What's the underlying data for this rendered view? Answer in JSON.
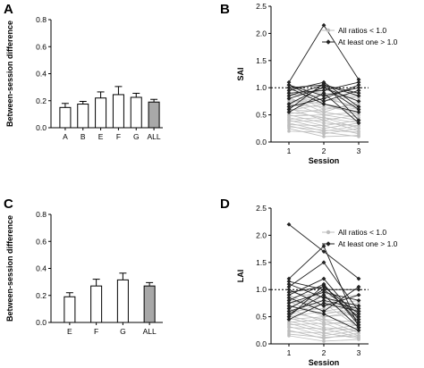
{
  "chart_data": [
    {
      "panel": "A",
      "type": "bar",
      "ylabel": "Between-session difference",
      "xlabel": "",
      "ylim": [
        0,
        0.8
      ],
      "yticks": [
        "0.0",
        "0.2",
        "0.4",
        "0.6",
        "0.8"
      ],
      "categories": [
        "A",
        "B",
        "E",
        "F",
        "G",
        "ALL"
      ],
      "values": [
        0.15,
        0.175,
        0.22,
        0.245,
        0.225,
        0.19
      ],
      "errors": [
        0.03,
        0.02,
        0.045,
        0.06,
        0.03,
        0.02
      ],
      "bar_fill": [
        "#ffffff",
        "#ffffff",
        "#ffffff",
        "#ffffff",
        "#ffffff",
        "#a8a8a8"
      ]
    },
    {
      "panel": "B",
      "type": "line",
      "xlabel": "Session",
      "ylabel": "SAI",
      "xticks": [
        "1",
        "2",
        "3"
      ],
      "ylim": [
        0,
        2.5
      ],
      "yticks": [
        "0.0",
        "0.5",
        "1.0",
        "1.5",
        "2.0",
        "2.5"
      ],
      "reference_line": 1.0,
      "legend": [
        "All ratios < 1.0",
        "At least one > 1.0"
      ],
      "legend_position": "top-right",
      "series_colors": {
        "below": "#bdbdbd",
        "above": "#222222"
      },
      "series": [
        {
          "group": "below",
          "values": [
            0.95,
            0.9,
            0.85
          ]
        },
        {
          "group": "below",
          "values": [
            0.92,
            0.6,
            0.7
          ]
        },
        {
          "group": "below",
          "values": [
            0.88,
            0.85,
            0.6
          ]
        },
        {
          "group": "below",
          "values": [
            0.85,
            0.95,
            0.9
          ]
        },
        {
          "group": "below",
          "values": [
            0.82,
            0.55,
            0.75
          ]
        },
        {
          "group": "below",
          "values": [
            0.78,
            0.7,
            0.5
          ]
        },
        {
          "group": "below",
          "values": [
            0.75,
            0.8,
            0.65
          ]
        },
        {
          "group": "below",
          "values": [
            0.72,
            0.5,
            0.4
          ]
        },
        {
          "group": "below",
          "values": [
            0.7,
            0.9,
            0.8
          ]
        },
        {
          "group": "below",
          "values": [
            0.68,
            0.65,
            0.55
          ]
        },
        {
          "group": "below",
          "values": [
            0.65,
            0.75,
            0.85
          ]
        },
        {
          "group": "below",
          "values": [
            0.62,
            0.4,
            0.5
          ]
        },
        {
          "group": "below",
          "values": [
            0.6,
            0.55,
            0.45
          ]
        },
        {
          "group": "below",
          "values": [
            0.58,
            0.7,
            0.6
          ]
        },
        {
          "group": "below",
          "values": [
            0.55,
            0.45,
            0.35
          ]
        },
        {
          "group": "below",
          "values": [
            0.52,
            0.6,
            0.7
          ]
        },
        {
          "group": "below",
          "values": [
            0.5,
            0.35,
            0.3
          ]
        },
        {
          "group": "below",
          "values": [
            0.48,
            0.5,
            0.55
          ]
        },
        {
          "group": "below",
          "values": [
            0.45,
            0.3,
            0.4
          ]
        },
        {
          "group": "below",
          "values": [
            0.42,
            0.45,
            0.25
          ]
        },
        {
          "group": "below",
          "values": [
            0.4,
            0.25,
            0.35
          ]
        },
        {
          "group": "below",
          "values": [
            0.38,
            0.4,
            0.2
          ]
        },
        {
          "group": "below",
          "values": [
            0.35,
            0.2,
            0.3
          ]
        },
        {
          "group": "below",
          "values": [
            0.32,
            0.3,
            0.15
          ]
        },
        {
          "group": "below",
          "values": [
            0.3,
            0.15,
            0.25
          ]
        },
        {
          "group": "below",
          "values": [
            0.28,
            0.22,
            0.18
          ]
        },
        {
          "group": "below",
          "values": [
            0.25,
            0.1,
            0.12
          ]
        },
        {
          "group": "below",
          "values": [
            0.2,
            0.18,
            0.1
          ]
        },
        {
          "group": "above",
          "values": [
            1.1,
            2.15,
            1.15
          ]
        },
        {
          "group": "above",
          "values": [
            1.05,
            0.85,
            1.0
          ]
        },
        {
          "group": "above",
          "values": [
            1.0,
            1.05,
            0.9
          ]
        },
        {
          "group": "above",
          "values": [
            0.95,
            1.1,
            0.65
          ]
        },
        {
          "group": "above",
          "values": [
            0.9,
            0.95,
            1.1
          ]
        },
        {
          "group": "above",
          "values": [
            0.8,
            1.0,
            0.75
          ]
        },
        {
          "group": "above",
          "values": [
            1.05,
            0.75,
            0.95
          ]
        },
        {
          "group": "above",
          "values": [
            0.7,
            1.02,
            0.6
          ]
        },
        {
          "group": "above",
          "values": [
            0.65,
            0.8,
            1.05
          ]
        },
        {
          "group": "above",
          "values": [
            0.6,
            1.08,
            0.4
          ]
        },
        {
          "group": "above",
          "values": [
            1.0,
            0.7,
            0.55
          ]
        },
        {
          "group": "above",
          "values": [
            0.55,
            0.9,
            0.35
          ]
        },
        {
          "group": "above",
          "values": [
            0.85,
            1.05,
            0.85
          ]
        }
      ]
    },
    {
      "panel": "C",
      "type": "bar",
      "ylabel": "Between-session difference",
      "xlabel": "",
      "ylim": [
        0,
        0.8
      ],
      "yticks": [
        "0.0",
        "0.2",
        "0.4",
        "0.6",
        "0.8"
      ],
      "categories": [
        "E",
        "F",
        "G",
        "ALL"
      ],
      "values": [
        0.19,
        0.27,
        0.315,
        0.27
      ],
      "errors": [
        0.03,
        0.05,
        0.05,
        0.025
      ],
      "bar_fill": [
        "#ffffff",
        "#ffffff",
        "#ffffff",
        "#a8a8a8"
      ]
    },
    {
      "panel": "D",
      "type": "line",
      "xlabel": "Session",
      "ylabel": "LAI",
      "xticks": [
        "1",
        "2",
        "3"
      ],
      "ylim": [
        0,
        2.5
      ],
      "yticks": [
        "0.0",
        "0.5",
        "1.0",
        "1.5",
        "2.0",
        "2.5"
      ],
      "reference_line": 1.0,
      "legend": [
        "All ratios < 1.0",
        "At least one > 1.0"
      ],
      "legend_position": "top-right",
      "series_colors": {
        "below": "#bdbdbd",
        "above": "#222222"
      },
      "series": [
        {
          "group": "below",
          "values": [
            0.95,
            0.85,
            0.9
          ]
        },
        {
          "group": "below",
          "values": [
            0.9,
            0.6,
            0.7
          ]
        },
        {
          "group": "below",
          "values": [
            0.85,
            0.95,
            0.6
          ]
        },
        {
          "group": "below",
          "values": [
            0.8,
            0.7,
            0.8
          ]
        },
        {
          "group": "below",
          "values": [
            0.78,
            0.5,
            0.55
          ]
        },
        {
          "group": "below",
          "values": [
            0.75,
            0.8,
            0.45
          ]
        },
        {
          "group": "below",
          "values": [
            0.7,
            0.55,
            0.65
          ]
        },
        {
          "group": "below",
          "values": [
            0.68,
            0.9,
            0.5
          ]
        },
        {
          "group": "below",
          "values": [
            0.65,
            0.4,
            0.35
          ]
        },
        {
          "group": "below",
          "values": [
            0.6,
            0.65,
            0.75
          ]
        },
        {
          "group": "below",
          "values": [
            0.58,
            0.45,
            0.4
          ]
        },
        {
          "group": "below",
          "values": [
            0.55,
            0.75,
            0.3
          ]
        },
        {
          "group": "below",
          "values": [
            0.52,
            0.35,
            0.45
          ]
        },
        {
          "group": "below",
          "values": [
            0.5,
            0.6,
            0.55
          ]
        },
        {
          "group": "below",
          "values": [
            0.48,
            0.3,
            0.25
          ]
        },
        {
          "group": "below",
          "values": [
            0.45,
            0.5,
            0.6
          ]
        },
        {
          "group": "below",
          "values": [
            0.42,
            0.25,
            0.35
          ]
        },
        {
          "group": "below",
          "values": [
            0.4,
            0.45,
            0.2
          ]
        },
        {
          "group": "below",
          "values": [
            0.38,
            0.2,
            0.3
          ]
        },
        {
          "group": "below",
          "values": [
            0.35,
            0.38,
            0.15
          ]
        },
        {
          "group": "below",
          "values": [
            0.32,
            0.15,
            0.25
          ]
        },
        {
          "group": "below",
          "values": [
            0.3,
            0.28,
            0.12
          ]
        },
        {
          "group": "below",
          "values": [
            0.25,
            0.1,
            0.2
          ]
        },
        {
          "group": "below",
          "values": [
            0.22,
            0.2,
            0.1
          ]
        },
        {
          "group": "below",
          "values": [
            0.18,
            0.12,
            0.15
          ]
        },
        {
          "group": "below",
          "values": [
            0.15,
            0.05,
            0.08
          ]
        },
        {
          "group": "above",
          "values": [
            2.2,
            1.7,
            1.2
          ]
        },
        {
          "group": "above",
          "values": [
            1.2,
            1.8,
            0.3
          ]
        },
        {
          "group": "above",
          "values": [
            1.15,
            1.0,
            1.0
          ]
        },
        {
          "group": "above",
          "values": [
            1.1,
            0.85,
            0.7
          ]
        },
        {
          "group": "above",
          "values": [
            1.05,
            1.5,
            0.6
          ]
        },
        {
          "group": "above",
          "values": [
            1.0,
            0.7,
            0.9
          ]
        },
        {
          "group": "above",
          "values": [
            0.95,
            1.05,
            0.55
          ]
        },
        {
          "group": "above",
          "values": [
            0.9,
            1.2,
            0.45
          ]
        },
        {
          "group": "above",
          "values": [
            0.85,
            0.6,
            1.05
          ]
        },
        {
          "group": "above",
          "values": [
            0.8,
            1.1,
            0.35
          ]
        },
        {
          "group": "above",
          "values": [
            0.75,
            0.95,
            0.8
          ]
        },
        {
          "group": "above",
          "values": [
            0.65,
            1.0,
            0.5
          ]
        },
        {
          "group": "above",
          "values": [
            0.6,
            0.8,
            0.65
          ]
        },
        {
          "group": "above",
          "values": [
            0.55,
            0.9,
            0.3
          ]
        },
        {
          "group": "above",
          "values": [
            0.5,
            1.08,
            0.4
          ]
        },
        {
          "group": "above",
          "values": [
            0.45,
            0.75,
            0.6
          ]
        },
        {
          "group": "above",
          "values": [
            0.7,
            0.55,
            0.25
          ]
        }
      ]
    }
  ]
}
